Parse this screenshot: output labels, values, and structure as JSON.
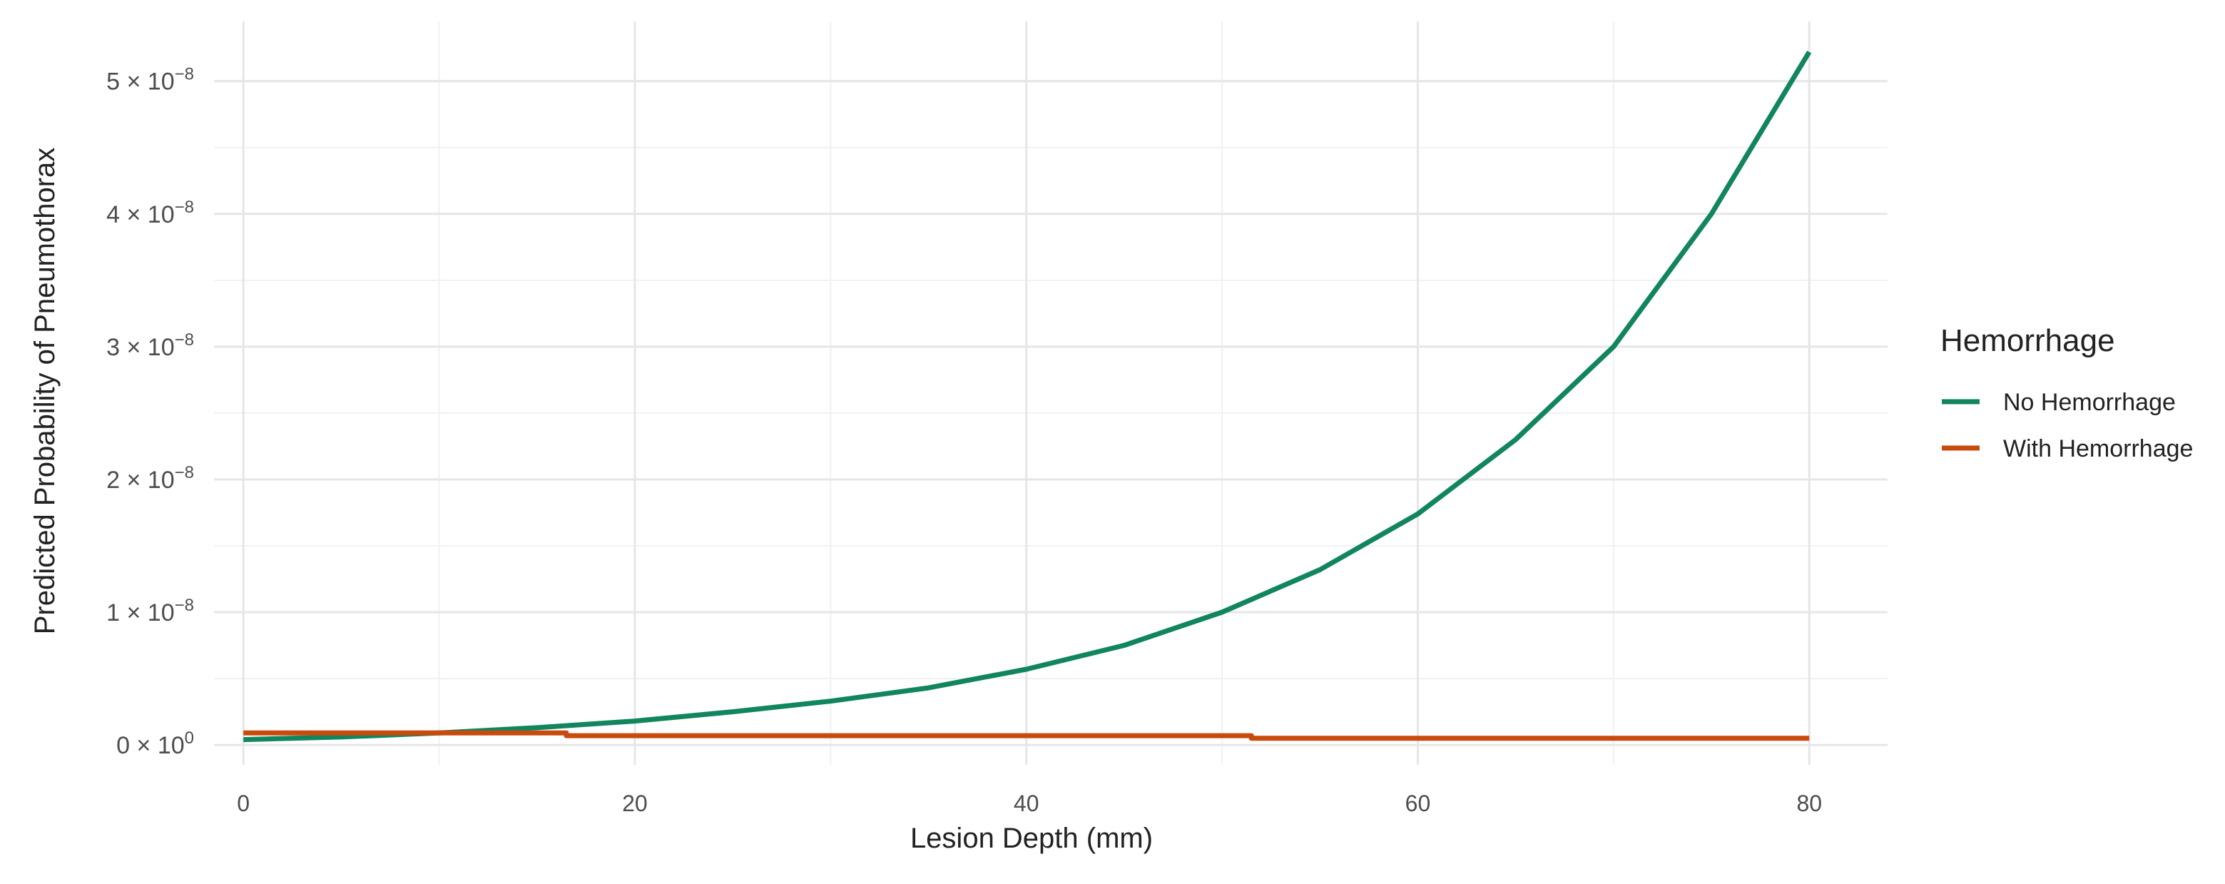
{
  "chart_data": {
    "type": "line",
    "xlabel": "Lesion Depth (mm)",
    "ylabel": "Predicted Probability of Pneumothorax",
    "xlim": [
      -1.5,
      84
    ],
    "ylim": [
      -1.5e-09,
      5.45e-08
    ],
    "x_ticks": [
      0,
      20,
      40,
      60,
      80
    ],
    "x_tick_labels": [
      "0",
      "20",
      "40",
      "60",
      "80"
    ],
    "y_ticks": [
      0,
      1e-08,
      2e-08,
      3e-08,
      4e-08,
      5e-08
    ],
    "y_tick_labels": [
      {
        "mant": "0",
        "exp": "0"
      },
      {
        "mant": "1",
        "exp": "−8"
      },
      {
        "mant": "2",
        "exp": "−8"
      },
      {
        "mant": "3",
        "exp": "−8"
      },
      {
        "mant": "4",
        "exp": "−8"
      },
      {
        "mant": "5",
        "exp": "−8"
      }
    ],
    "grid": true,
    "legend": {
      "title": "Hemorrhage",
      "position": "right"
    },
    "series": [
      {
        "name": "No Hemorrhage",
        "color": "#11855e",
        "x": [
          0,
          5,
          10,
          15,
          20,
          25,
          30,
          35,
          40,
          45,
          50,
          55,
          60,
          65,
          70,
          75,
          80
        ],
        "y": [
          4e-10,
          6e-10,
          9e-10,
          1.3e-09,
          1.8e-09,
          2.5e-09,
          3.3e-09,
          4.3e-09,
          5.7e-09,
          7.5e-09,
          1e-08,
          1.32e-08,
          1.74e-08,
          2.3e-08,
          3e-08,
          4e-08,
          5.22e-08
        ]
      },
      {
        "name": "With Hemorrhage",
        "color": "#c84a0c",
        "x": [
          0,
          16.5,
          16.5,
          51.5,
          51.5,
          80
        ],
        "y": [
          9e-10,
          9e-10,
          7e-10,
          7e-10,
          5e-10,
          5e-10
        ]
      }
    ]
  }
}
